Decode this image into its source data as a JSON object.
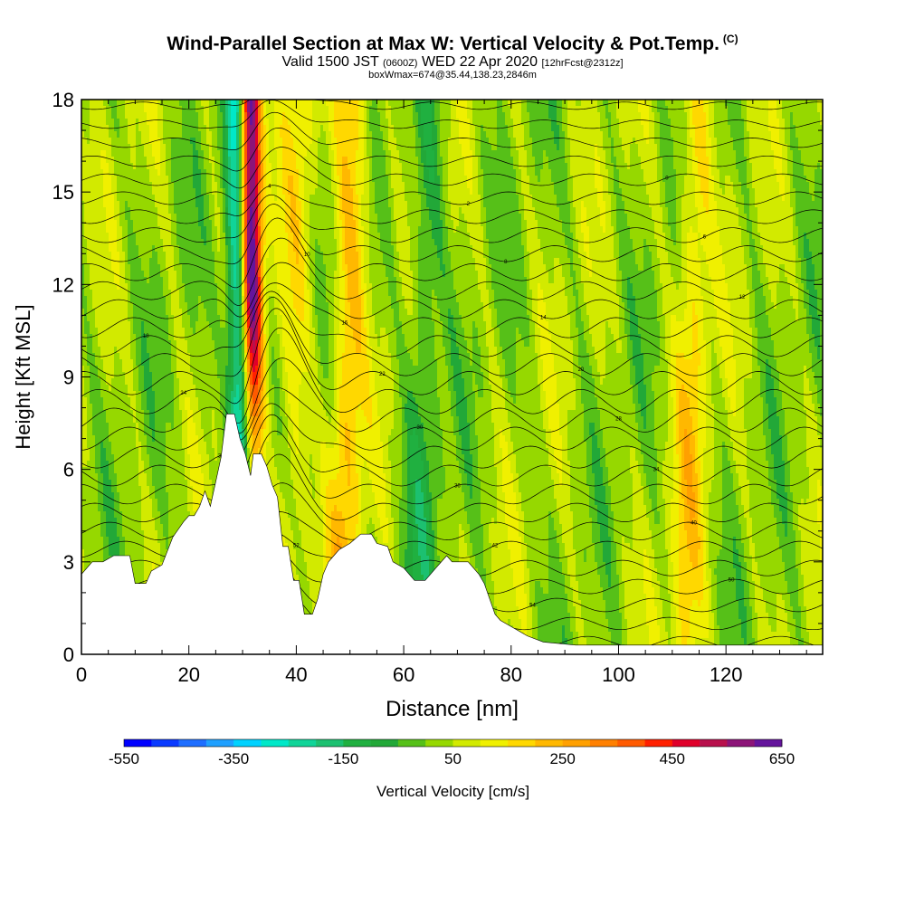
{
  "header": {
    "title": "Wind-Parallel Section at Max W: Vertical Velocity & Pot.Temp.",
    "title_mark": "(C)",
    "valid_prefix": "Valid 1500 JST",
    "valid_utc": "(0600Z)",
    "valid_date": "WED 22 Apr 2020",
    "fcst": "[12hrFcst@2312z]",
    "box_info": "boxWmax=674@35.44,138.23,2846m"
  },
  "chart_data": {
    "type": "heatmap",
    "xlabel": "Distance [nm]",
    "ylabel": "Height [Kft MSL]",
    "xlim": [
      0,
      138
    ],
    "ylim": [
      0,
      18
    ],
    "x_ticks": [
      0,
      20,
      40,
      60,
      80,
      100,
      120
    ],
    "y_ticks": [
      0,
      3,
      6,
      9,
      12,
      15,
      18
    ],
    "colorbar": {
      "label": "Vertical Velocity [cm/s]",
      "tick_labels": [
        "-550",
        "-350",
        "-150",
        "50",
        "250",
        "450",
        "650"
      ],
      "min": -550,
      "max": 650,
      "step": 50,
      "colors": [
        "#0000ff",
        "#0a3aff",
        "#1e6eff",
        "#1fa0ff",
        "#00d2ff",
        "#00e8c8",
        "#10d498",
        "#1cc070",
        "#20b040",
        "#22a838",
        "#56c018",
        "#96d800",
        "#d2ea00",
        "#f0f000",
        "#ffd800",
        "#ffb800",
        "#ffa000",
        "#ff8000",
        "#ff5a00",
        "#ff2000",
        "#e0002a",
        "#b8104c",
        "#8c1478",
        "#64149c"
      ]
    },
    "vertical_velocity_features": [
      {
        "x": 29.5,
        "w": -420,
        "note": "strong downdraft band"
      },
      {
        "x": 32.0,
        "w": 674,
        "note": "max updraft band"
      },
      {
        "x": 39.0,
        "w": 120
      },
      {
        "x": 49.0,
        "w": 200
      },
      {
        "x": 63.0,
        "w": -120
      },
      {
        "x": 113.0,
        "w": 150
      }
    ],
    "terrain_kft": [
      [
        0,
        2.6
      ],
      [
        2,
        3.0
      ],
      [
        4,
        3.0
      ],
      [
        6,
        3.2
      ],
      [
        9,
        3.2
      ],
      [
        10,
        2.3
      ],
      [
        12,
        2.3
      ],
      [
        13,
        2.7
      ],
      [
        15,
        2.9
      ],
      [
        17,
        3.8
      ],
      [
        19,
        4.3
      ],
      [
        20,
        4.5
      ],
      [
        21,
        4.5
      ],
      [
        22,
        4.8
      ],
      [
        23,
        5.3
      ],
      [
        24,
        4.8
      ],
      [
        25,
        5.6
      ],
      [
        26,
        6.4
      ],
      [
        27,
        7.8
      ],
      [
        28.5,
        7.8
      ],
      [
        29.5,
        7.0
      ],
      [
        30.5,
        6.5
      ],
      [
        31.5,
        5.8
      ],
      [
        32,
        6.5
      ],
      [
        33.5,
        6.5
      ],
      [
        34.5,
        6.1
      ],
      [
        35.5,
        5.5
      ],
      [
        36.5,
        5.1
      ],
      [
        37.5,
        3.5
      ],
      [
        38.5,
        3.5
      ],
      [
        39.5,
        2.4
      ],
      [
        40.5,
        2.4
      ],
      [
        41.5,
        1.3
      ],
      [
        43,
        1.3
      ],
      [
        44,
        1.8
      ],
      [
        45,
        2.6
      ],
      [
        46,
        3.0
      ],
      [
        47,
        3.2
      ],
      [
        48,
        3.4
      ],
      [
        50,
        3.6
      ],
      [
        52,
        3.9
      ],
      [
        54,
        3.9
      ],
      [
        55,
        3.6
      ],
      [
        57,
        3.5
      ],
      [
        58,
        3.0
      ],
      [
        60,
        2.8
      ],
      [
        62,
        2.4
      ],
      [
        64,
        2.4
      ],
      [
        66,
        2.8
      ],
      [
        68,
        3.2
      ],
      [
        69,
        3.0
      ],
      [
        70,
        3.0
      ],
      [
        72,
        3.0
      ],
      [
        74,
        2.6
      ],
      [
        75,
        2.3
      ],
      [
        76,
        1.8
      ],
      [
        77,
        1.3
      ],
      [
        78,
        1.1
      ],
      [
        80,
        0.9
      ],
      [
        81,
        0.8
      ],
      [
        83,
        0.6
      ],
      [
        86,
        0.4
      ],
      [
        92,
        0.3
      ],
      [
        95,
        0.3
      ],
      [
        138,
        0.3
      ]
    ],
    "theta_contour_labels": [
      "56",
      "54",
      "54",
      "50",
      "52",
      "42",
      "40",
      "38",
      "36",
      "34",
      "32",
      "30",
      "28",
      "24",
      "22",
      "20",
      "18",
      "16",
      "14",
      "12",
      "10",
      "8",
      "6",
      "4",
      "2",
      "0"
    ]
  }
}
